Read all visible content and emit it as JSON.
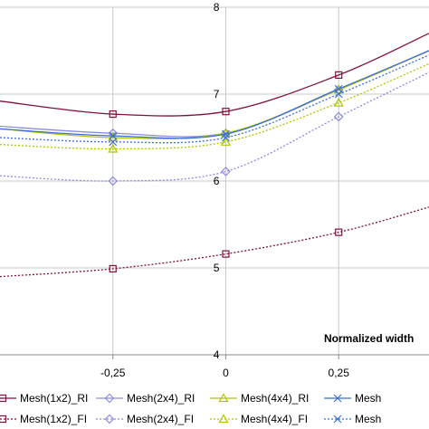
{
  "chart_data": {
    "type": "line",
    "xlabel": "Normalized width",
    "ylabel": "",
    "title": "",
    "xlim": [
      -0.5,
      0.45
    ],
    "ylim": [
      4,
      8
    ],
    "xticks": [
      -0.25,
      0,
      0.25
    ],
    "xtick_labels": [
      "-0,25",
      "0",
      "0,25"
    ],
    "yticks": [
      4,
      5,
      6,
      7,
      8
    ],
    "ytick_labels": [
      "4",
      "5",
      "6",
      "7",
      "8"
    ],
    "grid": true,
    "legend_position": "bottom",
    "series": [
      {
        "name": "Mesh(1x2)_RI",
        "color": "#7f0f3f",
        "dash": "solid",
        "marker": "square",
        "x": [
          -0.5,
          -0.25,
          0,
          0.25,
          0.45
        ],
        "y": [
          6.92,
          6.77,
          6.8,
          7.22,
          7.7
        ]
      },
      {
        "name": "Mesh(1x2)_FI",
        "color": "#7f0f3f",
        "dash": "dotted",
        "marker": "square",
        "x": [
          -0.5,
          -0.25,
          0,
          0.25,
          0.45
        ],
        "y": [
          4.9,
          4.99,
          5.16,
          5.41,
          5.7
        ]
      },
      {
        "name": "Mesh(2x4)_RI",
        "color": "#8c8ce0",
        "dash": "solid",
        "marker": "diamond",
        "x": [
          -0.5,
          -0.25,
          0,
          0.25,
          0.45
        ],
        "y": [
          6.63,
          6.55,
          6.55,
          7.05,
          7.5
        ]
      },
      {
        "name": "Mesh(2x4)_FI",
        "color": "#8c8ce0",
        "dash": "dotted",
        "marker": "diamond",
        "x": [
          -0.5,
          -0.25,
          0,
          0.25,
          0.45
        ],
        "y": [
          6.06,
          6.0,
          6.11,
          6.74,
          7.25
        ]
      },
      {
        "name": "Mesh(4x4)_RI",
        "color": "#b0c400",
        "dash": "solid",
        "marker": "triangle",
        "x": [
          -0.5,
          -0.25,
          0,
          0.25,
          0.45
        ],
        "y": [
          6.6,
          6.5,
          6.55,
          7.05,
          7.5
        ]
      },
      {
        "name": "Mesh(4x4)_FI",
        "color": "#b0c400",
        "dash": "dotted",
        "marker": "triangle",
        "x": [
          -0.5,
          -0.25,
          0,
          0.25,
          0.45
        ],
        "y": [
          6.42,
          6.37,
          6.45,
          6.9,
          7.35
        ]
      },
      {
        "name": "Mesh",
        "color": "#3b6fd4",
        "dash": "solid",
        "marker": "x",
        "x": [
          -0.5,
          -0.25,
          0,
          0.25,
          0.45
        ],
        "y": [
          6.6,
          6.52,
          6.54,
          7.06,
          7.5
        ]
      },
      {
        "name": "Mesh",
        "color": "#3b6fd4",
        "dash": "dotted",
        "marker": "x",
        "x": [
          -0.5,
          -0.25,
          0,
          0.25,
          0.45
        ],
        "y": [
          6.5,
          6.45,
          6.5,
          7.0,
          7.45
        ]
      }
    ],
    "legend": [
      [
        "Mesh(1x2)_RI",
        "Mesh(2x4)_RI",
        "Mesh(4x4)_RI",
        "Mesh"
      ],
      [
        "Mesh(1x2)_FI",
        "Mesh(2x4)_FI",
        "Mesh(4x4)_FI",
        "Mesh"
      ]
    ]
  }
}
